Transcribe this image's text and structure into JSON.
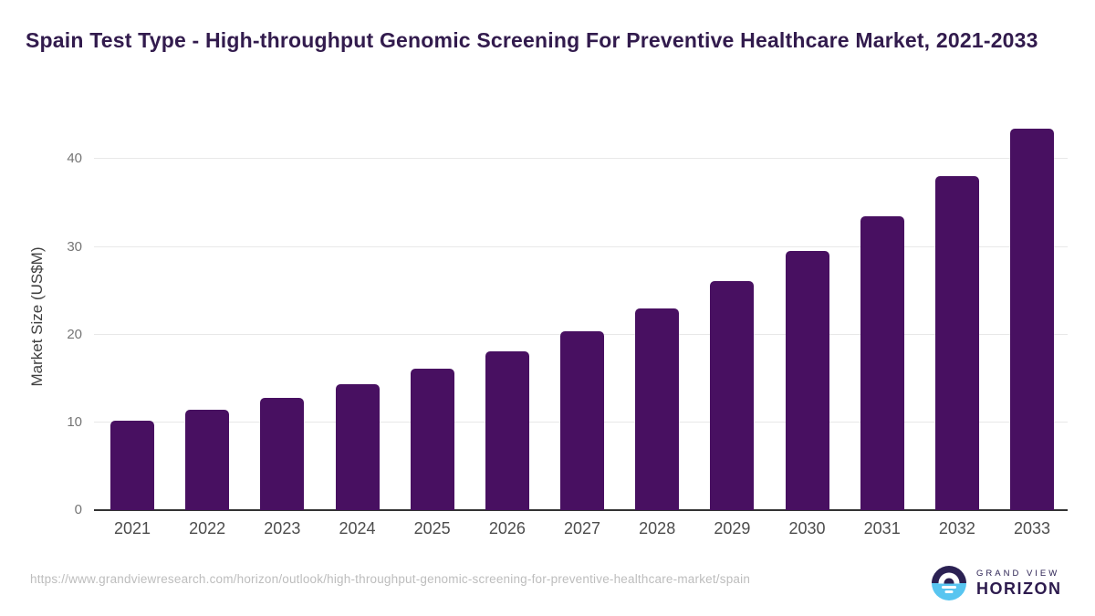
{
  "header": {
    "title": "Spain Test Type - High-throughput Genomic Screening For Preventive Healthcare Market, 2021-2033"
  },
  "chart_data": {
    "type": "bar",
    "title": "Spain Test Type - High-throughput Genomic Screening For Preventive Healthcare Market, 2021-2033",
    "categories": [
      "2021",
      "2022",
      "2023",
      "2024",
      "2025",
      "2026",
      "2027",
      "2028",
      "2029",
      "2030",
      "2031",
      "2032",
      "2033"
    ],
    "values": [
      10.2,
      11.4,
      12.8,
      14.4,
      16.1,
      18.1,
      20.4,
      23.0,
      26.1,
      29.5,
      33.5,
      38.1,
      43.5
    ],
    "xlabel": "",
    "ylabel": "Market Size (US$M)",
    "yticks": [
      0,
      10,
      20,
      30,
      40
    ],
    "ylim": [
      0,
      44.1
    ],
    "grid": true,
    "legend": "none",
    "bar_color": "#481061"
  },
  "footer": {
    "source_url": "https://www.grandviewresearch.com/horizon/outlook/high-throughput-genomic-screening-for-preventive-healthcare-market/spain",
    "logo": {
      "line1": "GRAND VIEW",
      "line2": "HORIZON"
    }
  },
  "colors": {
    "bar": "#481061",
    "title": "#321b4d",
    "grid": "#e8e8e8",
    "axis": "#333333",
    "tick_text": "#757575",
    "x_label_text": "#4d4d4d",
    "url_text": "#bdbdbd",
    "logo_navy": "#2b2153",
    "logo_blue": "#58c5f0"
  }
}
